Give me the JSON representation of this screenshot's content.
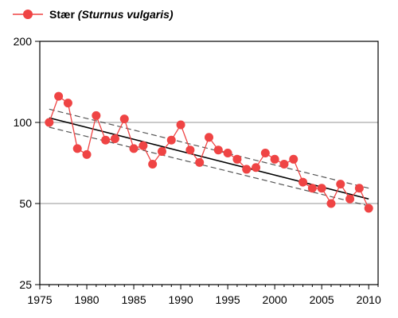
{
  "legend": {
    "name_main": "Stær",
    "name_latin": "(Sturnus vulgaris)"
  },
  "colors": {
    "series": "#ef4444",
    "trend": "#000000",
    "confidence": "#555555",
    "grid": "#b8b8b8",
    "axis": "#000000"
  },
  "chart_data": {
    "type": "line",
    "title": "",
    "xlabel": "",
    "ylabel": "",
    "y_scale": "log",
    "xlim": [
      1975,
      2011
    ],
    "ylim": [
      25,
      200
    ],
    "x_ticks": [
      1975,
      1980,
      1985,
      1990,
      1995,
      2000,
      2005,
      2010
    ],
    "y_ticks": [
      25,
      50,
      100,
      200
    ],
    "grid": {
      "horizontal": true,
      "vertical": false
    },
    "legend_position": "top-left",
    "series": [
      {
        "name": "Stær (Sturnus vulgaris)",
        "x": [
          1976,
          1977,
          1978,
          1979,
          1980,
          1981,
          1982,
          1983,
          1984,
          1985,
          1986,
          1987,
          1988,
          1989,
          1990,
          1991,
          1992,
          1993,
          1994,
          1995,
          1996,
          1997,
          1998,
          1999,
          2000,
          2001,
          2002,
          2003,
          2004,
          2005,
          2006,
          2007,
          2008,
          2009,
          2010
        ],
        "y": [
          100,
          125,
          118,
          80,
          76,
          106,
          86,
          87,
          103,
          80,
          82,
          70,
          78,
          86,
          98,
          79,
          71,
          88,
          79,
          77,
          73,
          67,
          68,
          77,
          73,
          70,
          73,
          60,
          57,
          57,
          50,
          59,
          52,
          57,
          48
        ]
      }
    ],
    "trend_line": {
      "x": [
        1976,
        2010
      ],
      "y": [
        104,
        52
      ]
    },
    "confidence_band": {
      "upper": {
        "x": [
          1976,
          2010
        ],
        "y": [
          112,
          57
        ]
      },
      "lower": {
        "x": [
          1976,
          2010
        ],
        "y": [
          96,
          49
        ]
      }
    }
  }
}
